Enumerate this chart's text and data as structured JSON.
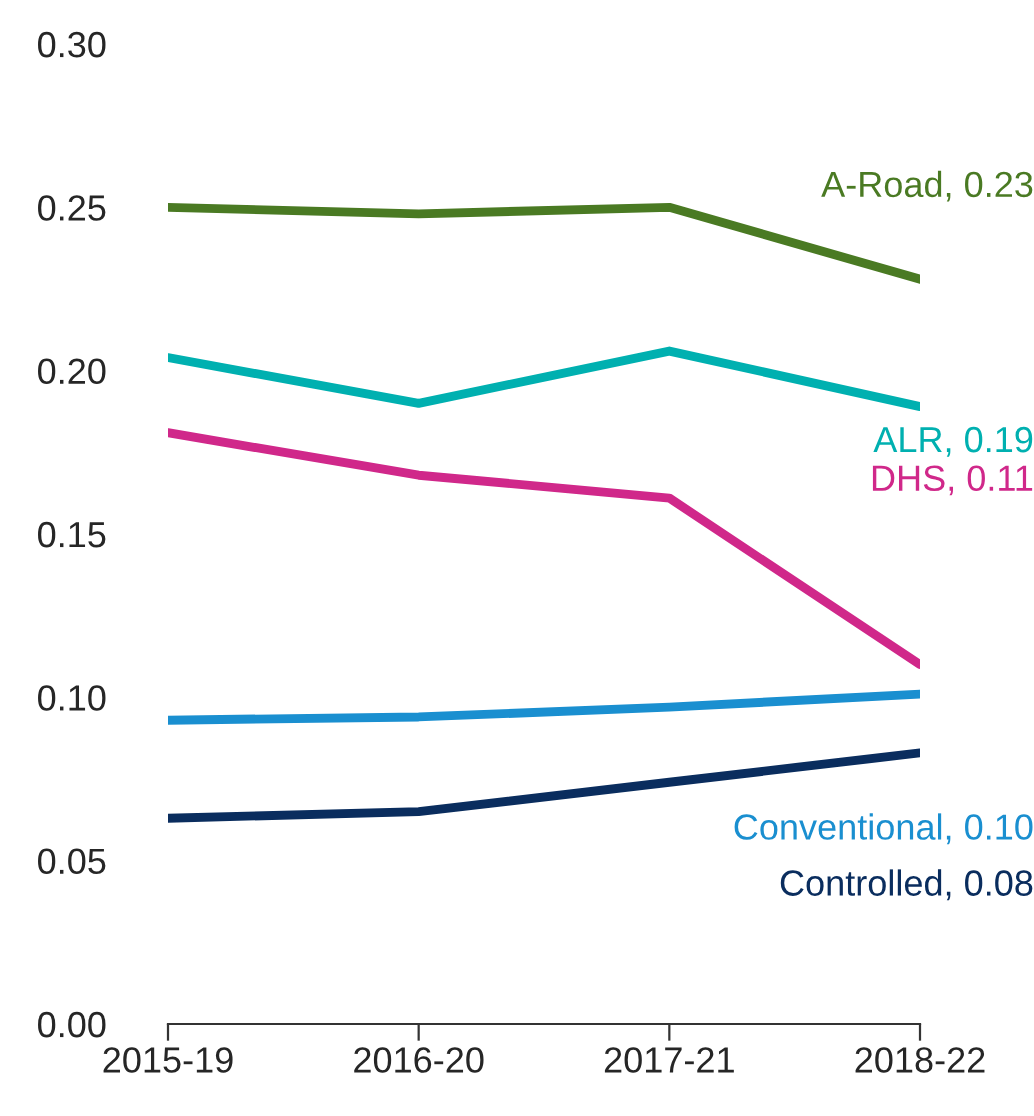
{
  "chart_data": {
    "type": "line",
    "categories": [
      "2015-19",
      "2016-20",
      "2017-21",
      "2018-22"
    ],
    "ylim": [
      0,
      0.3
    ],
    "yticks": [
      {
        "value": 0,
        "label": "0.00"
      },
      {
        "value": 0.05,
        "label": "0.05"
      },
      {
        "value": 0.1,
        "label": "0.10"
      },
      {
        "value": 0.15,
        "label": "0.15"
      },
      {
        "value": 0.2,
        "label": "0.20"
      },
      {
        "value": 0.25,
        "label": "0.25"
      },
      {
        "value": 0.3,
        "label": "0.30"
      }
    ],
    "annotations": [
      "A-Road, 0.23",
      "ALR, 0.19",
      "DHS, 0.11",
      "Conventional, 0.10",
      "Controlled, 0.08"
    ],
    "grid": false,
    "legend": false,
    "marker": "none",
    "line_style": "solid",
    "series": [
      {
        "color": "#4a7a23",
        "values": [
          0.25,
          0.248,
          0.25,
          0.228
        ]
      },
      {
        "color": "#00b0b0",
        "values": [
          0.204,
          0.19,
          0.206,
          0.189
        ]
      },
      {
        "color": "#d0288a",
        "values": [
          0.181,
          0.168,
          0.161,
          0.11
        ]
      },
      {
        "color": "#1a8fd0",
        "values": [
          0.093,
          0.094,
          0.097,
          0.101
        ]
      },
      {
        "color": "#0a2d5e",
        "values": [
          0.063,
          0.065,
          0.074,
          0.083
        ]
      }
    ]
  }
}
